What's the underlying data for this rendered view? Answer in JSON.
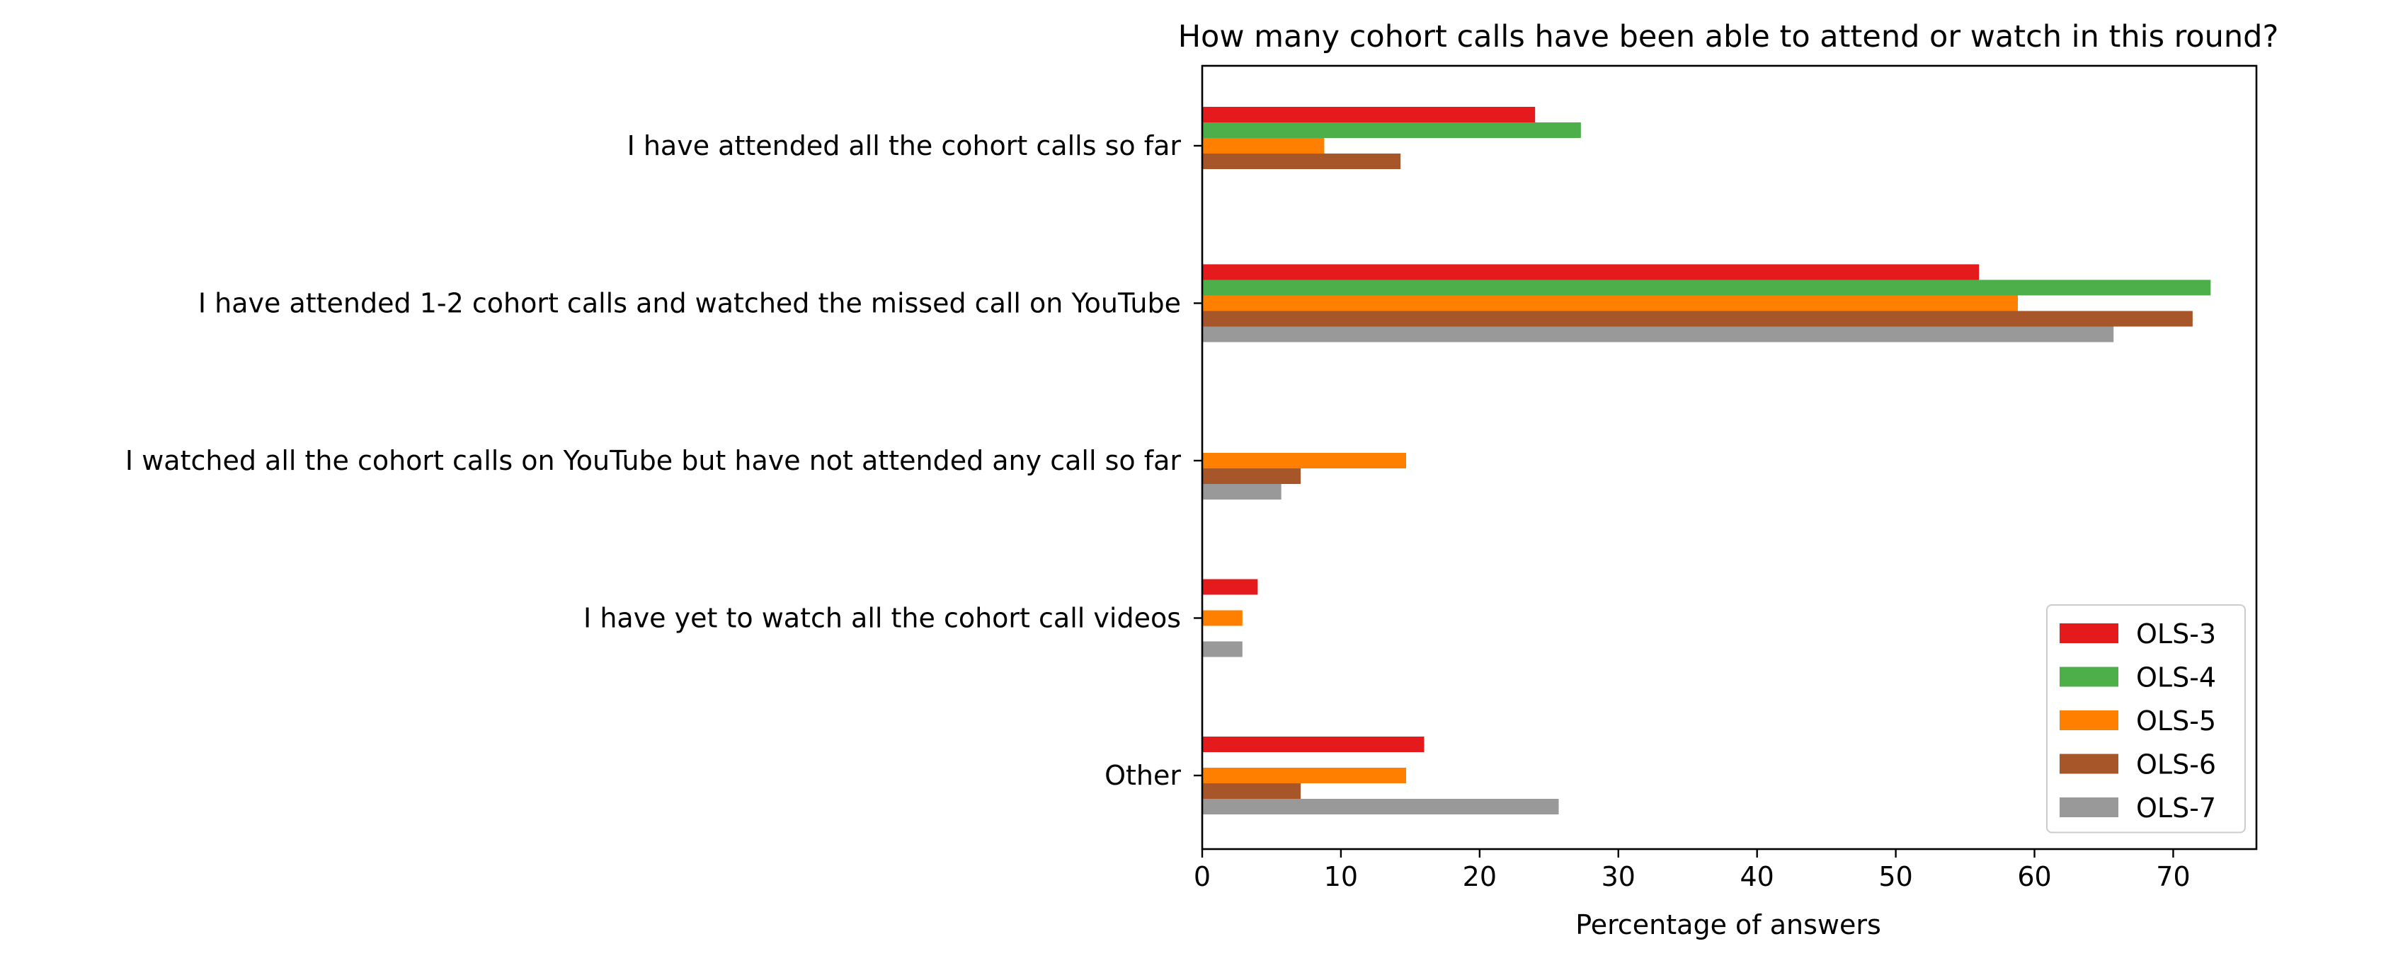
{
  "chart_data": {
    "type": "bar",
    "orientation": "horizontal",
    "title": "How many cohort calls have been able to attend or watch in this round?",
    "xlabel": "Percentage of answers",
    "ylabel": "",
    "xlim": [
      0,
      76
    ],
    "xticks": [
      0,
      10,
      20,
      30,
      40,
      50,
      60,
      70
    ],
    "grid": false,
    "legend_position": "lower-right",
    "categories": [
      "I have attended all the cohort calls so far",
      "I have attended 1-2 cohort calls and watched the missed call on YouTube",
      "I watched all the cohort calls on YouTube but have not attended any call so far",
      "I have yet to watch all the cohort call videos",
      "Other"
    ],
    "series": [
      {
        "name": "OLS-3",
        "color": "#e41a1c",
        "values": [
          24,
          56,
          0,
          4,
          16
        ]
      },
      {
        "name": "OLS-4",
        "color": "#4daf4a",
        "values": [
          27.3,
          72.7,
          0,
          0,
          0
        ]
      },
      {
        "name": "OLS-5",
        "color": "#ff7f00",
        "values": [
          8.8,
          58.8,
          14.7,
          2.9,
          14.7
        ]
      },
      {
        "name": "OLS-6",
        "color": "#a65628",
        "values": [
          14.3,
          71.4,
          7.1,
          0,
          7.1
        ]
      },
      {
        "name": "OLS-7",
        "color": "#999999",
        "values": [
          0,
          65.7,
          5.7,
          2.9,
          25.7
        ]
      }
    ]
  }
}
